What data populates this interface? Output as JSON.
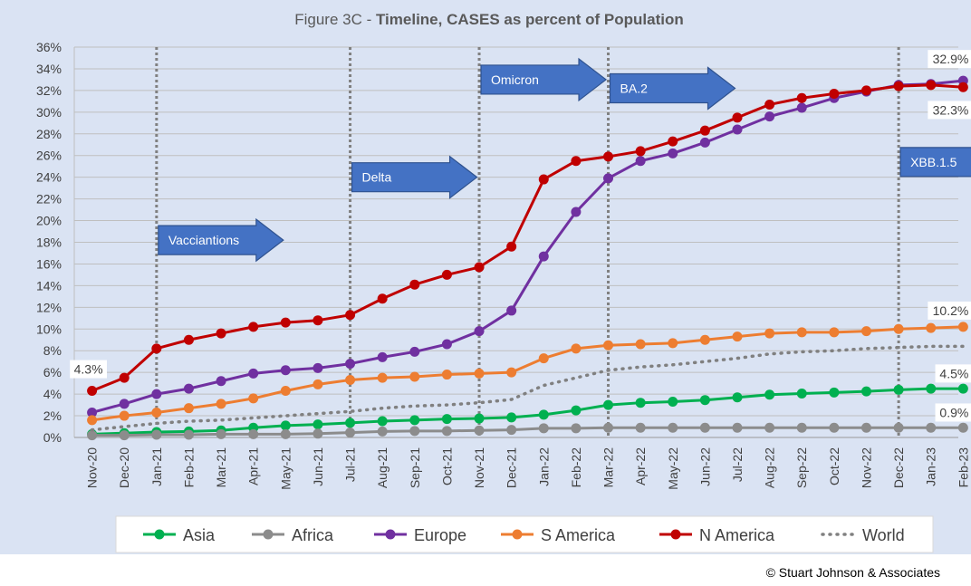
{
  "chart_data": {
    "type": "line",
    "title_prefix": "Figure 3C - ",
    "title_bold": "Timeline, CASES as percent of Population",
    "categories": [
      "Nov-20",
      "Dec-20",
      "Jan-21",
      "Feb-21",
      "Mar-21",
      "Apr-21",
      "May-21",
      "Jun-21",
      "Jul-21",
      "Aug-21",
      "Sep-21",
      "Oct-21",
      "Nov-21",
      "Dec-21",
      "Jan-22",
      "Feb-22",
      "Mar-22",
      "Apr-22",
      "May-22",
      "Jun-22",
      "Jul-22",
      "Aug-22",
      "Sep-22",
      "Oct-22",
      "Nov-22",
      "Dec-22",
      "Jan-23",
      "Feb-23"
    ],
    "ylim": [
      0,
      36
    ],
    "yticks": [
      0,
      2,
      4,
      6,
      8,
      10,
      12,
      14,
      16,
      18,
      20,
      22,
      24,
      26,
      28,
      30,
      32,
      34,
      36
    ],
    "ytick_labels": [
      "0%",
      "2%",
      "4%",
      "6%",
      "8%",
      "10%",
      "12%",
      "14%",
      "16%",
      "18%",
      "20%",
      "22%",
      "24%",
      "26%",
      "28%",
      "30%",
      "32%",
      "34%",
      "36%"
    ],
    "grid": true,
    "legend_position": "bottom",
    "series": [
      {
        "name": "Asia",
        "color": "#00b050",
        "style": "solid",
        "values": [
          0.3,
          0.4,
          0.5,
          0.55,
          0.65,
          0.9,
          1.1,
          1.2,
          1.35,
          1.5,
          1.6,
          1.7,
          1.75,
          1.85,
          2.1,
          2.5,
          3.0,
          3.2,
          3.3,
          3.45,
          3.7,
          3.95,
          4.05,
          4.15,
          4.25,
          4.4,
          4.5,
          4.5
        ]
      },
      {
        "name": "Africa",
        "color": "#8c8c8c",
        "style": "solid",
        "values": [
          0.2,
          0.2,
          0.25,
          0.25,
          0.3,
          0.3,
          0.3,
          0.35,
          0.45,
          0.55,
          0.6,
          0.6,
          0.65,
          0.7,
          0.85,
          0.85,
          0.9,
          0.9,
          0.9,
          0.9,
          0.9,
          0.9,
          0.9,
          0.9,
          0.9,
          0.9,
          0.9,
          0.9
        ]
      },
      {
        "name": "Europe",
        "color": "#7030a0",
        "style": "solid",
        "values": [
          2.3,
          3.1,
          4.0,
          4.5,
          5.2,
          5.9,
          6.2,
          6.4,
          6.8,
          7.4,
          7.9,
          8.6,
          9.8,
          11.7,
          16.7,
          20.8,
          23.9,
          25.5,
          26.2,
          27.2,
          28.4,
          29.6,
          30.4,
          31.3,
          31.9,
          32.5,
          32.6,
          32.9
        ]
      },
      {
        "name": "S America",
        "color": "#ed7d31",
        "style": "solid",
        "values": [
          1.6,
          2.0,
          2.3,
          2.7,
          3.1,
          3.6,
          4.3,
          4.9,
          5.3,
          5.5,
          5.6,
          5.8,
          5.9,
          6.0,
          7.3,
          8.2,
          8.5,
          8.6,
          8.7,
          9.0,
          9.3,
          9.6,
          9.7,
          9.7,
          9.8,
          10.0,
          10.1,
          10.2
        ]
      },
      {
        "name": "N America",
        "color": "#c00000",
        "style": "solid",
        "values": [
          4.3,
          5.5,
          8.2,
          9.0,
          9.6,
          10.2,
          10.6,
          10.8,
          11.3,
          12.8,
          14.1,
          15.0,
          15.7,
          17.6,
          23.8,
          25.5,
          25.9,
          26.4,
          27.3,
          28.3,
          29.5,
          30.7,
          31.3,
          31.7,
          32.0,
          32.4,
          32.5,
          32.3
        ]
      },
      {
        "name": "World",
        "color": "#808080",
        "style": "dotted",
        "values": [
          0.7,
          1.0,
          1.3,
          1.5,
          1.6,
          1.8,
          2.0,
          2.2,
          2.4,
          2.7,
          2.9,
          3.0,
          3.2,
          3.5,
          4.8,
          5.5,
          6.2,
          6.5,
          6.7,
          7.0,
          7.3,
          7.7,
          7.9,
          8.0,
          8.2,
          8.3,
          8.4,
          8.4
        ]
      }
    ],
    "vlines": [
      "Jan-21",
      "Jul-21",
      "Nov-21",
      "Mar-22",
      "Dec-22"
    ],
    "arrows": [
      {
        "label": "Vacciantions",
        "category": "Jan-21",
        "y": 18.2
      },
      {
        "label": "Delta",
        "category": "Jul-21",
        "y": 24.0
      },
      {
        "label": "Omicron",
        "category": "Nov-21",
        "y": 33.0
      },
      {
        "label": "BA.2",
        "category": "Mar-22",
        "y": 32.2
      },
      {
        "label": "XBB.1.5",
        "category": "Dec-22",
        "y": 25.4
      }
    ],
    "annotations": [
      {
        "text": "4.3%",
        "category": "Nov-20",
        "y": 6.3,
        "align": "middle"
      },
      {
        "text": "32.9%",
        "category": "Feb-23",
        "y": 34.9,
        "align": "end"
      },
      {
        "text": "32.3%",
        "category": "Feb-23",
        "y": 30.2,
        "align": "end"
      },
      {
        "text": "10.2%",
        "category": "Feb-23",
        "y": 11.7,
        "align": "end"
      },
      {
        "text": "4.5%",
        "category": "Feb-23",
        "y": 5.9,
        "align": "end"
      },
      {
        "text": "0.9%",
        "category": "Feb-23",
        "y": 2.3,
        "align": "end"
      }
    ]
  },
  "footer": {
    "copyright": "© Stuart Johnson & Associates"
  },
  "style": {
    "plot_background": "#dae3f3",
    "arrow_fill": "#4472c4",
    "arrow_stroke": "#2f528f"
  }
}
